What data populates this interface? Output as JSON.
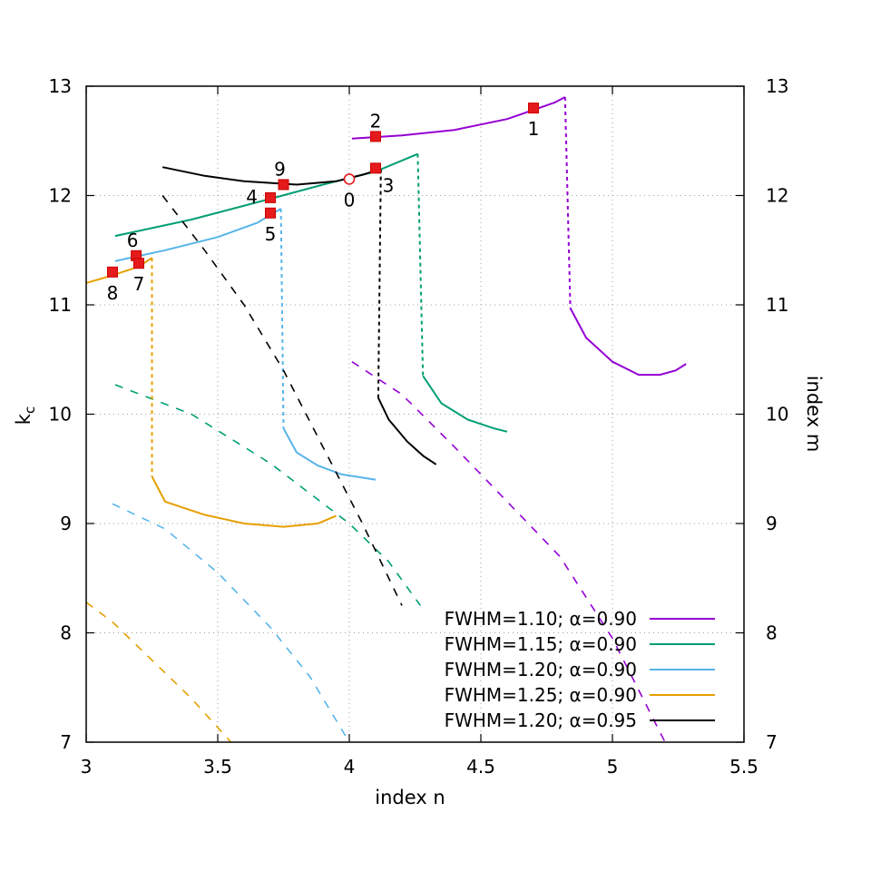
{
  "chart_data": {
    "type": "line",
    "xlabel": "index n",
    "ylabel": "k",
    "ylabel_sub": "c",
    "y2label": "index m",
    "xlim": [
      3,
      5.5
    ],
    "ylim": [
      7,
      13
    ],
    "xticks": [
      3,
      3.5,
      4,
      4.5,
      5,
      5.5
    ],
    "xtick_labels": [
      "3",
      "3.5",
      "4",
      "4.5",
      "5",
      "5.5"
    ],
    "yticks": [
      7,
      8,
      9,
      10,
      11,
      12,
      13
    ],
    "ytick_labels": [
      "7",
      "8",
      "9",
      "10",
      "11",
      "12",
      "13"
    ],
    "y2tick_labels": [
      "7",
      "8",
      "9",
      "10",
      "11",
      "12",
      "13"
    ],
    "grid": "dotted",
    "legend_position": "bottom-right",
    "series": [
      {
        "name": "FWHM=1.10; α=0.90",
        "color": "#9400d3",
        "upper": [
          [
            4.01,
            12.52
          ],
          [
            4.2,
            12.55
          ],
          [
            4.4,
            12.6
          ],
          [
            4.6,
            12.7
          ],
          [
            4.78,
            12.85
          ],
          [
            4.82,
            12.9
          ]
        ],
        "drop": [
          [
            4.82,
            12.9
          ],
          [
            4.84,
            10.97
          ]
        ],
        "lower": [
          [
            4.84,
            10.97
          ],
          [
            4.9,
            10.7
          ],
          [
            5.0,
            10.48
          ],
          [
            5.1,
            10.36
          ],
          [
            5.18,
            10.36
          ],
          [
            5.24,
            10.4
          ],
          [
            5.28,
            10.46
          ]
        ],
        "dashed": [
          [
            4.01,
            10.48
          ],
          [
            4.2,
            10.18
          ],
          [
            4.4,
            9.7
          ],
          [
            4.6,
            9.2
          ],
          [
            4.8,
            8.7
          ],
          [
            5.0,
            7.95
          ],
          [
            5.2,
            7.0
          ]
        ]
      },
      {
        "name": "FWHM=1.15; α=0.90",
        "color": "#009e73",
        "upper": [
          [
            3.11,
            11.63
          ],
          [
            3.4,
            11.78
          ],
          [
            3.7,
            11.97
          ],
          [
            3.9,
            12.1
          ],
          [
            4.1,
            12.22
          ],
          [
            4.26,
            12.38
          ]
        ],
        "drop": [
          [
            4.26,
            12.38
          ],
          [
            4.28,
            10.35
          ]
        ],
        "lower": [
          [
            4.28,
            10.35
          ],
          [
            4.35,
            10.1
          ],
          [
            4.45,
            9.95
          ],
          [
            4.55,
            9.87
          ],
          [
            4.6,
            9.84
          ]
        ],
        "dashed": [
          [
            3.11,
            10.27
          ],
          [
            3.4,
            10.0
          ],
          [
            3.7,
            9.55
          ],
          [
            4.0,
            9.0
          ],
          [
            4.15,
            8.65
          ],
          [
            4.27,
            8.25
          ]
        ]
      },
      {
        "name": "FWHM=1.20; α=0.90",
        "color": "#56b4e9",
        "upper": [
          [
            3.11,
            11.4
          ],
          [
            3.3,
            11.5
          ],
          [
            3.5,
            11.62
          ],
          [
            3.65,
            11.75
          ],
          [
            3.74,
            11.88
          ]
        ],
        "drop": [
          [
            3.74,
            11.88
          ],
          [
            3.75,
            9.87
          ]
        ],
        "lower": [
          [
            3.75,
            9.87
          ],
          [
            3.8,
            9.65
          ],
          [
            3.88,
            9.53
          ],
          [
            3.97,
            9.45
          ],
          [
            4.1,
            9.4
          ]
        ],
        "dashed": [
          [
            3.1,
            9.18
          ],
          [
            3.3,
            8.95
          ],
          [
            3.5,
            8.55
          ],
          [
            3.7,
            8.05
          ],
          [
            3.85,
            7.6
          ],
          [
            4.0,
            7.0
          ]
        ]
      },
      {
        "name": "FWHM=1.25; α=0.90",
        "color": "#e69f00",
        "upper": [
          [
            3.0,
            11.2
          ],
          [
            3.1,
            11.27
          ],
          [
            3.2,
            11.35
          ],
          [
            3.25,
            11.43
          ]
        ],
        "drop": [
          [
            3.25,
            11.43
          ],
          [
            3.25,
            9.43
          ]
        ],
        "lower": [
          [
            3.25,
            9.43
          ],
          [
            3.3,
            9.2
          ],
          [
            3.45,
            9.08
          ],
          [
            3.6,
            9.0
          ],
          [
            3.75,
            8.97
          ],
          [
            3.88,
            9.0
          ],
          [
            3.95,
            9.07
          ]
        ],
        "dashed": [
          [
            3.0,
            8.28
          ],
          [
            3.1,
            8.1
          ],
          [
            3.25,
            7.75
          ],
          [
            3.4,
            7.4
          ],
          [
            3.55,
            7.0
          ]
        ]
      },
      {
        "name": "FWHM=1.20; α=0.95",
        "color": "#000000",
        "upper": [
          [
            3.29,
            12.26
          ],
          [
            3.45,
            12.18
          ],
          [
            3.6,
            12.13
          ],
          [
            3.8,
            12.1
          ],
          [
            3.95,
            12.13
          ],
          [
            4.05,
            12.19
          ],
          [
            4.12,
            12.24
          ]
        ],
        "drop": [
          [
            4.12,
            12.24
          ],
          [
            4.11,
            10.15
          ]
        ],
        "lower": [
          [
            4.11,
            10.15
          ],
          [
            4.15,
            9.95
          ],
          [
            4.22,
            9.75
          ],
          [
            4.28,
            9.62
          ],
          [
            4.33,
            9.54
          ]
        ],
        "dashed": [
          [
            3.29,
            12.0
          ],
          [
            3.45,
            11.5
          ],
          [
            3.6,
            11.0
          ],
          [
            3.75,
            10.4
          ],
          [
            3.9,
            9.7
          ],
          [
            4.05,
            9.0
          ],
          [
            4.2,
            8.25
          ]
        ]
      }
    ],
    "markers": [
      {
        "label": "0",
        "n": 4.0,
        "k": 12.15,
        "style": "open-circle",
        "label_position": "below"
      },
      {
        "label": "1",
        "n": 4.7,
        "k": 12.8,
        "style": "square",
        "label_position": "below"
      },
      {
        "label": "2",
        "n": 4.1,
        "k": 12.54,
        "style": "square",
        "label_position": "above"
      },
      {
        "label": "3",
        "n": 4.1,
        "k": 12.25,
        "style": "square",
        "label_position": "below-right"
      },
      {
        "label": "4",
        "n": 3.7,
        "k": 11.98,
        "style": "square",
        "label_position": "left"
      },
      {
        "label": "5",
        "n": 3.7,
        "k": 11.84,
        "style": "square",
        "label_position": "below"
      },
      {
        "label": "6",
        "n": 3.19,
        "k": 11.45,
        "style": "square",
        "label_position": "above-left"
      },
      {
        "label": "7",
        "n": 3.2,
        "k": 11.38,
        "style": "square",
        "label_position": "below"
      },
      {
        "label": "8",
        "n": 3.1,
        "k": 11.3,
        "style": "square",
        "label_position": "below"
      },
      {
        "label": "9",
        "n": 3.75,
        "k": 12.1,
        "style": "square",
        "label_position": "above-left"
      }
    ],
    "marker_colors": {
      "fill": "#e41a1c",
      "stroke": "#cc0000"
    }
  }
}
